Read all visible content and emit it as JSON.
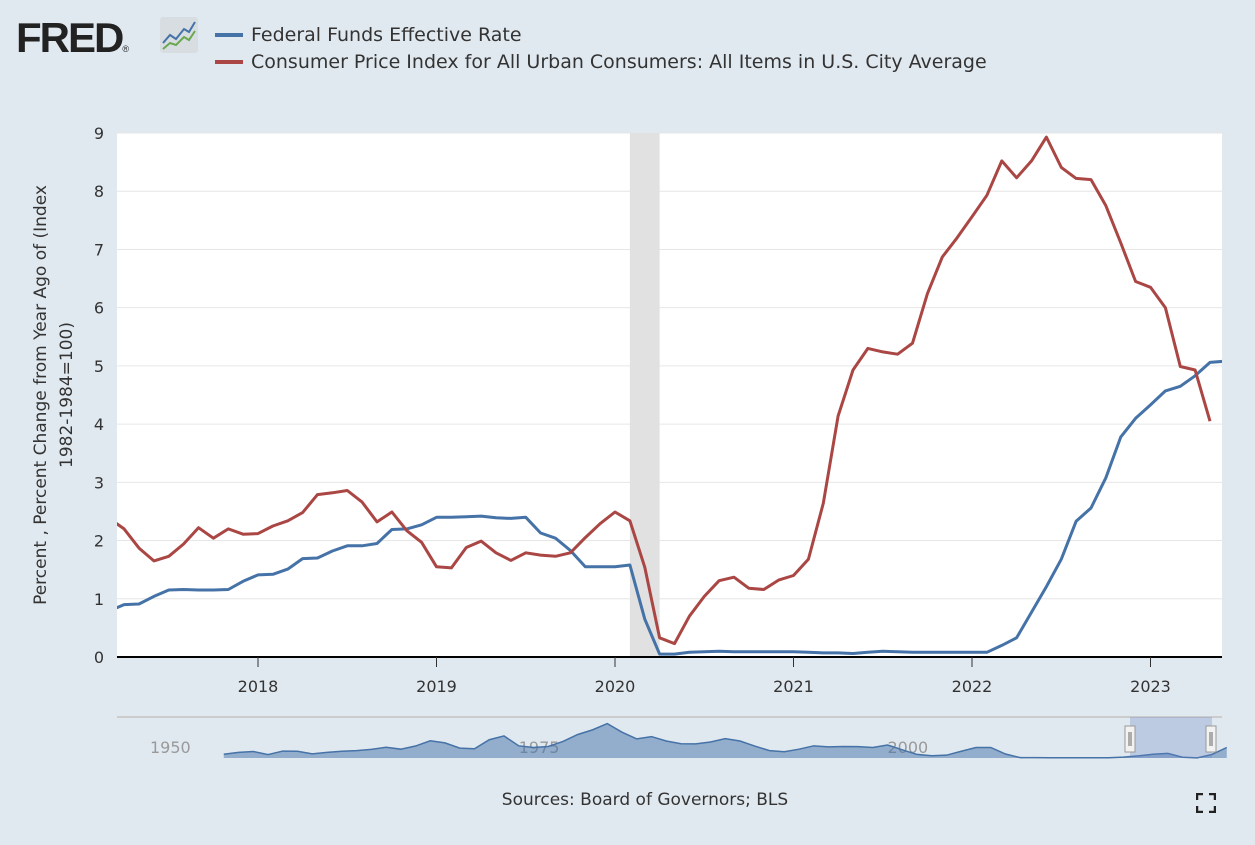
{
  "header": {
    "logo_text": "FRED",
    "logo_mark": "®"
  },
  "legend": [
    {
      "label": "Federal Funds Effective Rate",
      "color": "#4572a7"
    },
    {
      "label": "Consumer Price Index for All Urban Consumers: All Items in U.S. City Average",
      "color": "#aa4643"
    }
  ],
  "source": "Sources: Board of Governors; BLS",
  "fullscreen_icon": "fullscreen-icon",
  "chart_data": {
    "type": "line",
    "ylabel": "Percent , Percent Change from Year Ago of (Index 1982-1984=100)",
    "ylim": [
      0,
      9
    ],
    "yticks": [
      "0",
      "1",
      "2",
      "3",
      "4",
      "5",
      "6",
      "7",
      "8",
      "9"
    ],
    "xticks": [
      "2018",
      "2019",
      "2020",
      "2021",
      "2022",
      "2023"
    ],
    "grid": true,
    "legend_position": "top",
    "x_start": "2017-03",
    "x_end": "2023-06",
    "recession": {
      "start": "2020-02",
      "end": "2020-04"
    },
    "series": [
      {
        "name": "Federal Funds Effective Rate",
        "color": "#4572a7",
        "start": "2017-03",
        "values": [
          0.79,
          0.9,
          0.91,
          1.04,
          1.15,
          1.16,
          1.15,
          1.15,
          1.16,
          1.3,
          1.41,
          1.42,
          1.51,
          1.69,
          1.7,
          1.82,
          1.91,
          1.91,
          1.95,
          2.19,
          2.2,
          2.27,
          2.4,
          2.4,
          2.41,
          2.42,
          2.39,
          2.38,
          2.4,
          2.13,
          2.04,
          1.83,
          1.55,
          1.55,
          1.55,
          1.58,
          0.65,
          0.05,
          0.05,
          0.08,
          0.09,
          0.1,
          0.09,
          0.09,
          0.09,
          0.09,
          0.09,
          0.08,
          0.07,
          0.07,
          0.06,
          0.08,
          0.1,
          0.09,
          0.08,
          0.08,
          0.08,
          0.08,
          0.08,
          0.08,
          0.2,
          0.33,
          0.77,
          1.21,
          1.68,
          2.33,
          2.56,
          3.08,
          3.78,
          4.1,
          4.33,
          4.57,
          4.65,
          4.83,
          5.06,
          5.08
        ]
      },
      {
        "name": "Consumer Price Index for All Urban Consumers: All Items in U.S. City Average",
        "color": "#aa4643",
        "start": "2017-03",
        "values": [
          2.38,
          2.2,
          1.87,
          1.65,
          1.73,
          1.94,
          2.22,
          2.04,
          2.2,
          2.11,
          2.12,
          2.25,
          2.34,
          2.48,
          2.79,
          2.82,
          2.86,
          2.66,
          2.32,
          2.49,
          2.17,
          1.97,
          1.55,
          1.53,
          1.88,
          1.99,
          1.79,
          1.66,
          1.79,
          1.75,
          1.73,
          1.79,
          2.05,
          2.29,
          2.49,
          2.34,
          1.54,
          0.33,
          0.23,
          0.7,
          1.04,
          1.31,
          1.37,
          1.18,
          1.16,
          1.32,
          1.4,
          1.68,
          2.64,
          4.14,
          4.93,
          5.3,
          5.24,
          5.2,
          5.39,
          6.24,
          6.87,
          7.2,
          7.56,
          7.93,
          8.52,
          8.23,
          8.52,
          8.93,
          8.41,
          8.22,
          8.2,
          7.75,
          7.11,
          6.45,
          6.35,
          6.0,
          4.99,
          4.93,
          4.05
        ]
      }
    ],
    "navigator": {
      "xticks": [
        "1950",
        "1975",
        "2000"
      ],
      "start_year": 1955,
      "values": [
        1.8,
        2.7,
        3.1,
        1.6,
        3.3,
        3.2,
        1.96,
        2.7,
        3.2,
        3.5,
        4.1,
        5.1,
        4.2,
        5.7,
        8.2,
        7.2,
        4.7,
        4.4,
        8.7,
        10.5,
        5.8,
        5.0,
        5.5,
        7.9,
        11.2,
        13.4,
        16.4,
        12.3,
        9.1,
        10.2,
        8.1,
        6.8,
        6.7,
        7.6,
        9.2,
        8.1,
        5.7,
        3.5,
        3.0,
        4.2,
        5.8,
        5.3,
        5.5,
        5.4,
        5.0,
        6.2,
        3.9,
        1.7,
        1.1,
        1.35,
        3.2,
        5.0,
        5.0,
        1.9,
        0.16,
        0.18,
        0.1,
        0.14,
        0.11,
        0.09,
        0.13,
        0.4,
        1.0,
        1.8,
        2.2,
        0.38,
        0.08,
        1.7,
        5.0
      ]
    }
  }
}
